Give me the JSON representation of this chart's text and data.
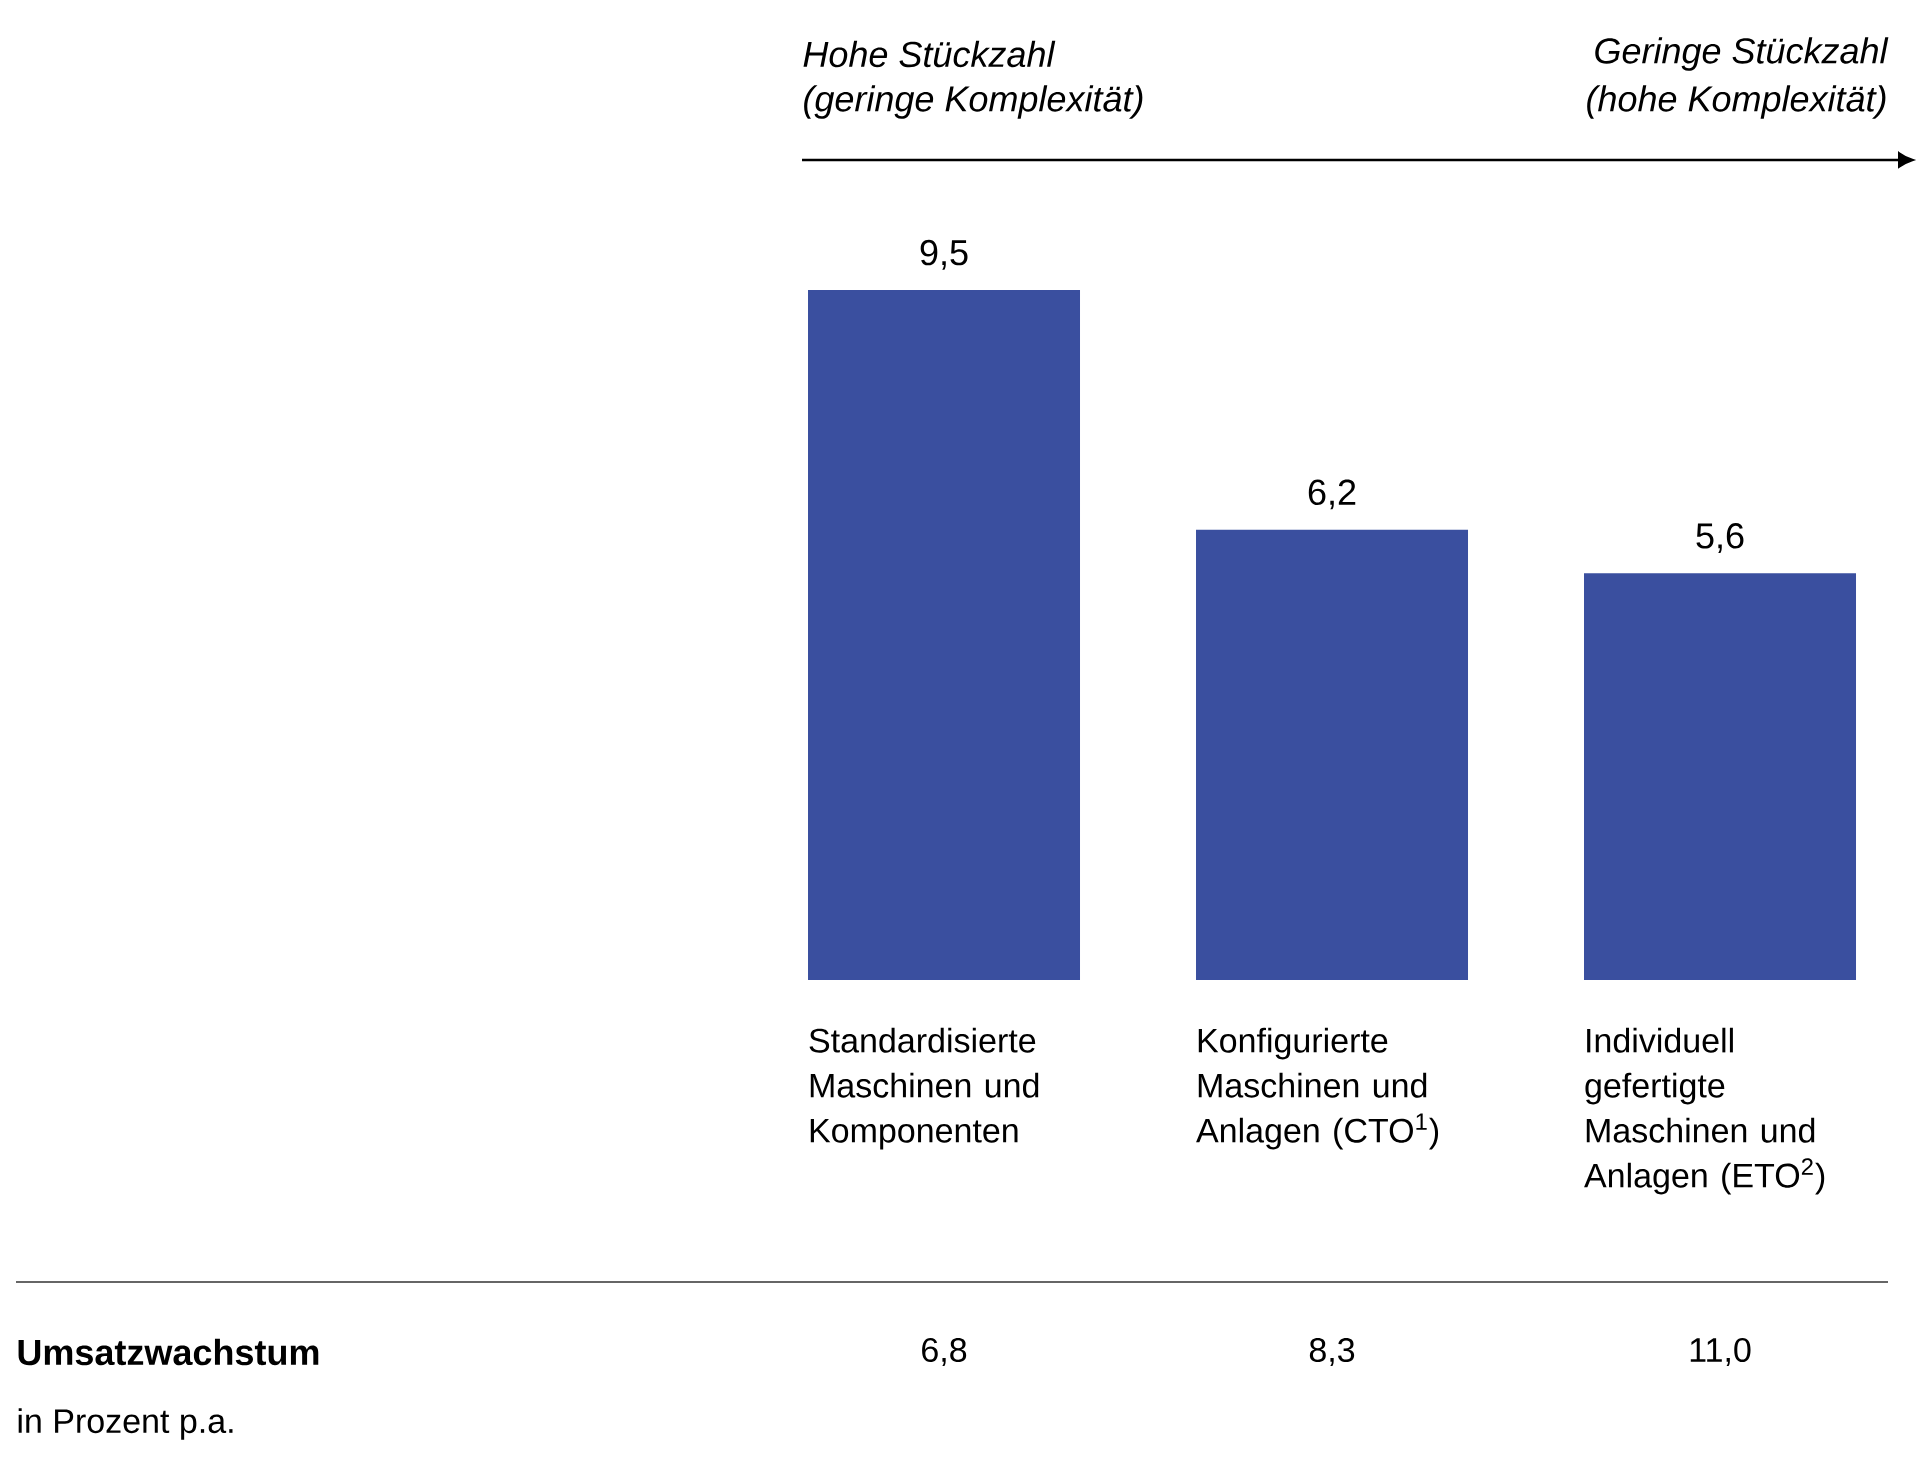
{
  "chart_data": {
    "type": "bar",
    "categories": [
      "Standardisierte Maschinen und Komponenten",
      "Konfigurierte Maschinen und Anlagen (CTO$^{1}$)",
      "Individuell gefertigte Maschinen und Anlagen (ETO$^{2}$)"
    ],
    "values": [
      9.5,
      6.2,
      5.6
    ],
    "value_labels": [
      "9,5",
      "6,2",
      "5,6"
    ],
    "color": "#3a4f9f",
    "annotations": [
      "Hohe Stückzahl",
      "(geringe Komplexität)",
      "Geringe Stückzahl",
      "(hohe Komplexität)",
      "Umsatzwachstum",
      "in Prozent p.a.",
      "6,8",
      "8,3",
      "11,0"
    ]
  }
}
